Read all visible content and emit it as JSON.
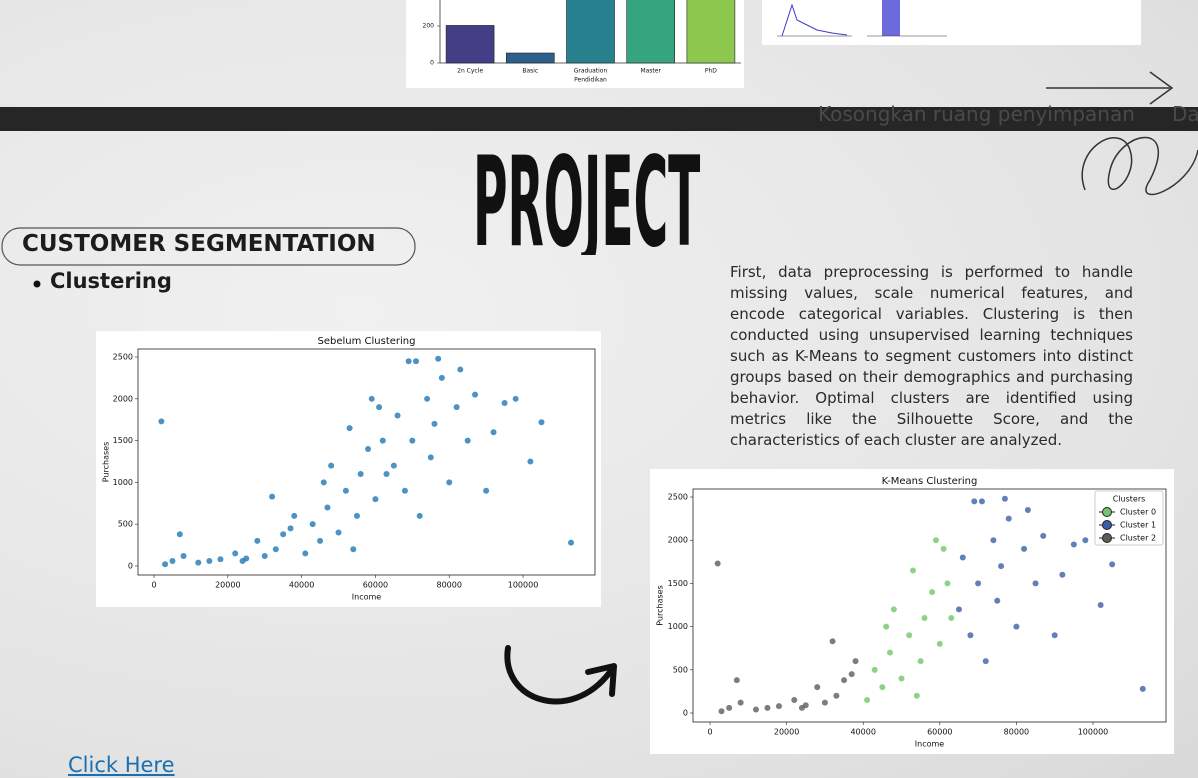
{
  "banner": {
    "left": "Kosongkan ruang penyimpanan",
    "right": "Da"
  },
  "title": "PROJECT",
  "section": {
    "heading": "CUSTOMER SEGMENTATION",
    "bullet": "Clustering",
    "description": "First, data preprocessing is performed to handle missing values, scale numerical features, and encode categorical variables. Clustering is then conducted using unsupervised learning techniques such as K-Means to segment customers into distinct groups based on their demographics and purchasing behavior. Optimal clusters are identified using metrics like the Silhouette Score, and the characteristics of each cluster are analyzed."
  },
  "link": "Click Here",
  "chart_data": [
    {
      "type": "bar",
      "x_label": "Pendidikan",
      "categories": [
        "2n Cycle",
        "Basic",
        "Graduation",
        "Master",
        "PhD"
      ],
      "values": [
        203,
        54,
        1127,
        370,
        486
      ],
      "colors": [
        "#433e85",
        "#2c5f8a",
        "#27808e",
        "#35a57f",
        "#8cc84e"
      ],
      "ylim": [
        0,
        1200
      ],
      "yticks": [
        0,
        200,
        400,
        600,
        800,
        1000,
        1200
      ]
    },
    {
      "type": "scatter",
      "title": "Sebelum Clustering",
      "x_label": "Income",
      "y_label": "Purchases",
      "color": "#1f77b4",
      "x": [
        2000,
        3000,
        5000,
        7000,
        8000,
        12000,
        15000,
        18000,
        22000,
        25000,
        28000,
        30000,
        33000,
        35000,
        37000,
        38000,
        24000,
        32000,
        41000,
        43000,
        45000,
        47000,
        48000,
        50000,
        52000,
        53000,
        55000,
        56000,
        58000,
        60000,
        61000,
        62000,
        63000,
        54000,
        59000,
        46000,
        65000,
        66000,
        68000,
        70000,
        71000,
        72000,
        74000,
        75000,
        76000,
        78000,
        80000,
        82000,
        83000,
        85000,
        87000,
        90000,
        92000,
        95000,
        98000,
        102000,
        105000,
        113000,
        69000,
        77000
      ],
      "values": [
        1730,
        20,
        60,
        380,
        120,
        40,
        60,
        80,
        150,
        90,
        300,
        120,
        200,
        380,
        450,
        600,
        60,
        830,
        150,
        500,
        300,
        700,
        1200,
        400,
        900,
        1650,
        600,
        1100,
        1400,
        800,
        1900,
        1500,
        1100,
        200,
        2000,
        1000,
        1200,
        1800,
        900,
        1500,
        2450,
        600,
        2000,
        1300,
        1700,
        2250,
        1000,
        1900,
        2350,
        1500,
        2050,
        900,
        1600,
        1950,
        2000,
        1250,
        1720,
        280,
        2450,
        2480
      ],
      "xlim": [
        -4336,
        119500
      ],
      "ylim": [
        -108,
        2596
      ],
      "xticks": [
        0,
        20000,
        40000,
        60000,
        80000,
        100000
      ],
      "yticks": [
        0,
        500,
        1000,
        1500,
        2000,
        2500
      ]
    },
    {
      "type": "scatter",
      "title": "K-Means Clustering",
      "x_label": "Income",
      "y_label": "Purchases",
      "legend_title": "Clusters",
      "legend": "upper right",
      "series": [
        {
          "name": "Cluster 0",
          "color": "#74c66a",
          "x": [
            41000,
            43000,
            45000,
            47000,
            48000,
            50000,
            52000,
            53000,
            55000,
            56000,
            58000,
            60000,
            61000,
            62000,
            63000,
            54000,
            59000,
            46000
          ],
          "values": [
            150,
            500,
            300,
            700,
            1200,
            400,
            900,
            1650,
            600,
            1100,
            1400,
            800,
            1900,
            1500,
            1100,
            200,
            2000,
            1000
          ]
        },
        {
          "name": "Cluster 1",
          "color": "#3a5fa8",
          "x": [
            65000,
            66000,
            68000,
            70000,
            71000,
            72000,
            74000,
            75000,
            76000,
            78000,
            80000,
            82000,
            83000,
            85000,
            87000,
            90000,
            92000,
            95000,
            98000,
            102000,
            105000,
            113000,
            69000,
            77000
          ],
          "values": [
            1200,
            1800,
            900,
            1500,
            2450,
            600,
            2000,
            1300,
            1700,
            2250,
            1000,
            1900,
            2350,
            1500,
            2050,
            900,
            1600,
            1950,
            2000,
            1250,
            1720,
            280,
            2450,
            2480
          ]
        },
        {
          "name": "Cluster 2",
          "color": "#5c5c5c",
          "x": [
            2000,
            3000,
            5000,
            7000,
            8000,
            12000,
            15000,
            18000,
            22000,
            25000,
            28000,
            30000,
            33000,
            35000,
            37000,
            38000,
            24000,
            32000
          ],
          "values": [
            1730,
            20,
            60,
            380,
            120,
            40,
            60,
            80,
            150,
            90,
            300,
            120,
            200,
            380,
            450,
            600,
            60,
            830
          ]
        }
      ],
      "xlim": [
        -4439,
        119060
      ],
      "ylim": [
        -104,
        2593
      ],
      "xticks": [
        0,
        20000,
        40000,
        60000,
        80000,
        100000
      ],
      "yticks": [
        0,
        500,
        1000,
        1500,
        2000,
        2500
      ]
    }
  ]
}
